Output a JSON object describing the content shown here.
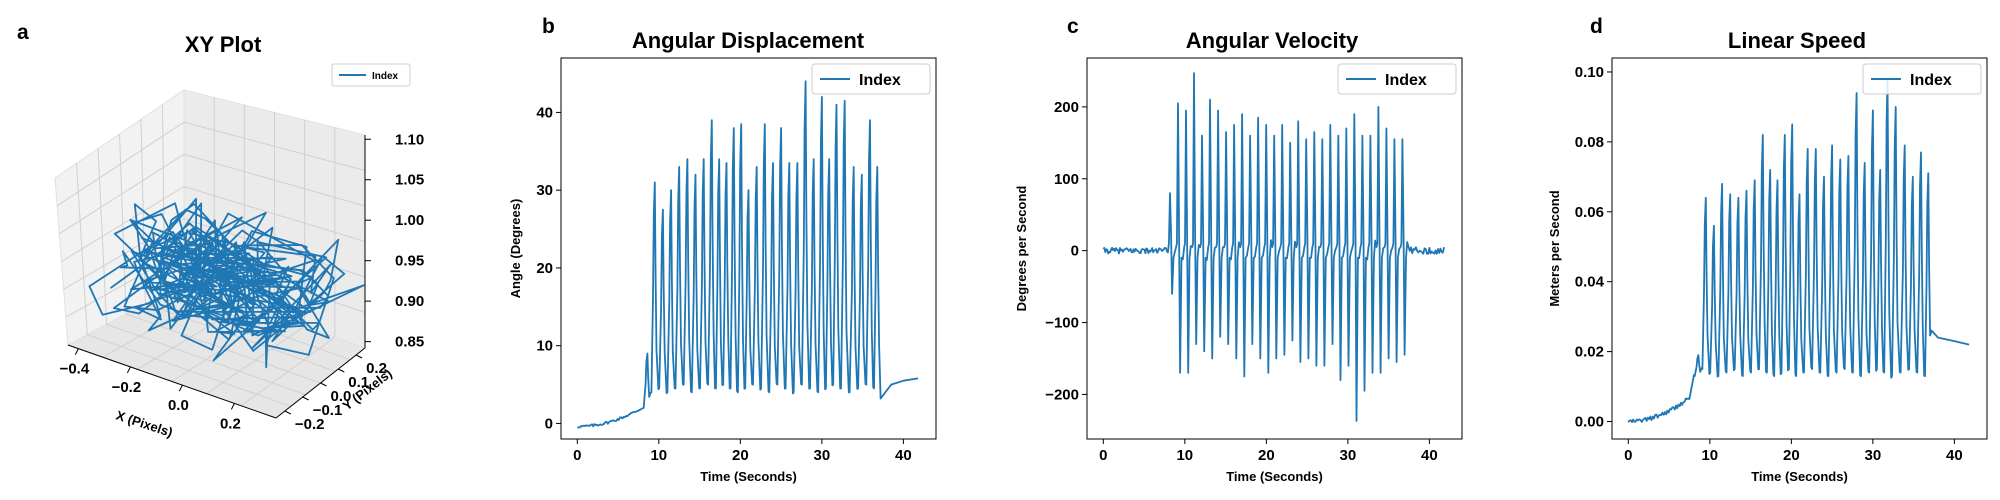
{
  "colors": {
    "line": "#1f77b4",
    "pane": "#f2f2f2",
    "grid": "#d0d0d0",
    "axis": "#000000"
  },
  "chart_data": [
    {
      "panel": "a",
      "type": "line3d",
      "title": "XY Plot",
      "xlabel": "X (Pixels)",
      "ylabel": "Y (Pixels)",
      "zlabel": "",
      "xlim": [
        -0.45,
        0.35
      ],
      "ylim": [
        -0.25,
        0.22
      ],
      "zlim": [
        0.83,
        1.12
      ],
      "xticks": [
        "−0.4",
        "−0.2",
        "0.0",
        "0.2"
      ],
      "yticks": [
        "−0.2",
        "−0.1",
        "0.0",
        "0.1",
        "0.2"
      ],
      "zticks": [
        "0.85",
        "0.90",
        "0.95",
        "1.00",
        "1.05",
        "1.10"
      ],
      "legend": [
        "Index"
      ],
      "legend_position": "upper-right",
      "grid": true,
      "series": [
        {
          "name": "Index",
          "x_range": [
            -0.42,
            0.3
          ],
          "y_range": [
            -0.2,
            0.18
          ],
          "z_range": [
            0.86,
            1.08
          ],
          "points": 320
        }
      ]
    },
    {
      "panel": "b",
      "type": "line",
      "title": "Angular Displacement",
      "xlabel": "Time (Seconds)",
      "ylabel": "Angle (Degrees)",
      "xlim": [
        -2,
        44
      ],
      "ylim": [
        -2,
        47
      ],
      "xticks": [
        "0",
        "10",
        "20",
        "30",
        "40"
      ],
      "yticks": [
        "0",
        "10",
        "20",
        "30",
        "40"
      ],
      "legend": [
        "Index"
      ],
      "legend_position": "upper-right",
      "series": [
        {
          "name": "Index",
          "peak_times": [
            8.6,
            9.5,
            10.5,
            11.5,
            12.5,
            13.5,
            14.5,
            15.5,
            16.5,
            17.4,
            18.3,
            19.2,
            20.1,
            21.0,
            22.0,
            23.0,
            24.0,
            25.0,
            26.0,
            27.0,
            28.0,
            29.0,
            30.0,
            30.9,
            31.8,
            32.8,
            33.9,
            34.9,
            35.9,
            36.8
          ],
          "peak_values": [
            9,
            31,
            27.5,
            30,
            33,
            34,
            32,
            34,
            39,
            34,
            33.5,
            38,
            38.5,
            30,
            33,
            38.5,
            33.5,
            38,
            33.5,
            33.5,
            44,
            34,
            42,
            34,
            41,
            41.5,
            33,
            32,
            39,
            33
          ],
          "trough_values": [
            2,
            4,
            4.5,
            4,
            4.5,
            5,
            4,
            4.5,
            5,
            4.5,
            5,
            4.5,
            4,
            4.5,
            5,
            4.5,
            4,
            5,
            4.5,
            4,
            5,
            4.5,
            4,
            4.5,
            5,
            4.5,
            4,
            4.5,
            5,
            4.5
          ],
          "baseline_start": [
            0.0,
            -0.4
          ],
          "baseline_end": [
            7.6,
            1.8
          ],
          "tail": [
            [
              37.2,
              3.2
            ],
            [
              38.5,
              5.0
            ],
            [
              40.0,
              5.5
            ],
            [
              41.8,
              5.8
            ]
          ]
        }
      ]
    },
    {
      "panel": "c",
      "type": "line",
      "title": "Angular Velocity",
      "xlabel": "Time (Seconds)",
      "ylabel": "Degrees per Second",
      "xlim": [
        -2,
        44
      ],
      "ylim": [
        -262,
        268
      ],
      "xticks": [
        "0",
        "10",
        "20",
        "30",
        "40"
      ],
      "yticks": [
        "−200",
        "−100",
        "0",
        "100",
        "200"
      ],
      "legend": [
        "Index"
      ],
      "legend_position": "upper-right",
      "series": [
        {
          "name": "Index",
          "burst_range": [
            8.0,
            37.5
          ],
          "peaks": [
            80,
            205,
            195,
            247,
            160,
            210,
            195,
            165,
            175,
            190,
            160,
            185,
            175,
            160,
            175,
            150,
            180,
            155,
            165,
            155,
            175,
            160,
            170,
            190,
            160,
            160,
            200,
            170,
            155,
            155
          ],
          "troughs": [
            -60,
            -170,
            -170,
            -130,
            -140,
            -150,
            -120,
            -130,
            -150,
            -175,
            -130,
            -150,
            -170,
            -150,
            -145,
            -125,
            -155,
            -150,
            -160,
            -160,
            -130,
            -180,
            -160,
            -237,
            -195,
            -170,
            -170,
            -150,
            -155,
            -145
          ]
        }
      ]
    },
    {
      "panel": "d",
      "type": "line",
      "title": "Linear Speed",
      "xlabel": "Time (Seconds)",
      "ylabel": "Meters per Second",
      "xlim": [
        -2,
        44
      ],
      "ylim": [
        -0.005,
        0.104
      ],
      "xticks": [
        "0",
        "10",
        "20",
        "30",
        "40"
      ],
      "yticks": [
        "0.00",
        "0.02",
        "0.04",
        "0.06",
        "0.08",
        "0.10"
      ],
      "legend": [
        "Index"
      ],
      "legend_position": "upper-right",
      "series": [
        {
          "name": "Index",
          "peak_times": [
            8.6,
            9.5,
            10.5,
            11.5,
            12.5,
            13.5,
            14.5,
            15.5,
            16.5,
            17.4,
            18.3,
            19.2,
            20.1,
            21.0,
            22.0,
            23.0,
            24.0,
            25.0,
            26.0,
            27.0,
            28.0,
            29.0,
            30.0,
            30.9,
            31.8,
            32.8,
            33.9,
            34.9,
            35.9,
            36.8
          ],
          "peak_values": [
            0.019,
            0.064,
            0.056,
            0.068,
            0.065,
            0.064,
            0.066,
            0.069,
            0.082,
            0.072,
            0.069,
            0.082,
            0.085,
            0.065,
            0.078,
            0.078,
            0.07,
            0.079,
            0.075,
            0.076,
            0.094,
            0.074,
            0.089,
            0.072,
            0.098,
            0.09,
            0.079,
            0.07,
            0.077,
            0.071
          ],
          "trough_values": [
            0.013,
            0.015,
            0.014,
            0.013,
            0.014,
            0.015,
            0.013,
            0.014,
            0.015,
            0.014,
            0.013,
            0.014,
            0.015,
            0.013,
            0.014,
            0.015,
            0.014,
            0.013,
            0.014,
            0.015,
            0.014,
            0.013,
            0.014,
            0.015,
            0.014,
            0.013,
            0.014,
            0.015,
            0.014,
            0.013
          ],
          "baseline_start": [
            0.0,
            0.0
          ],
          "baseline_end": [
            7.6,
            0.007
          ],
          "tail": [
            [
              37.2,
              0.026
            ],
            [
              38.0,
              0.024
            ],
            [
              40.0,
              0.023
            ],
            [
              41.8,
              0.022
            ]
          ]
        }
      ]
    }
  ]
}
